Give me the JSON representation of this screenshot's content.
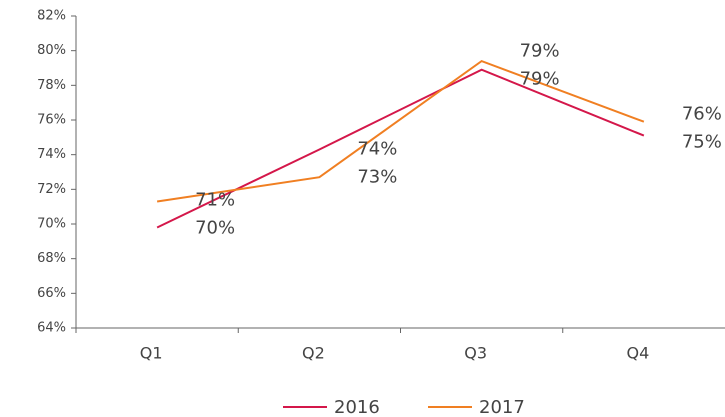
{
  "chart_data": {
    "type": "line",
    "categories": [
      "Q1",
      "Q2",
      "Q3",
      "Q4"
    ],
    "series": [
      {
        "name": "2016",
        "color": "#d4174a",
        "values": [
          69.8,
          74.3,
          78.9,
          75.1
        ],
        "value_labels": [
          "70%",
          "74%",
          "79%",
          "75%"
        ]
      },
      {
        "name": "2017",
        "color": "#f07f22",
        "values": [
          71.3,
          72.7,
          79.4,
          75.9
        ],
        "value_labels": [
          "71%",
          "73%",
          "79%",
          "76%"
        ]
      }
    ],
    "ylim": [
      64,
      82
    ],
    "yticks": [
      {
        "value": 64,
        "label": "64%"
      },
      {
        "value": 66,
        "label": "66%"
      },
      {
        "value": 68,
        "label": "68%"
      },
      {
        "value": 70,
        "label": "70%"
      },
      {
        "value": 72,
        "label": "72%"
      },
      {
        "value": 74,
        "label": "74%"
      },
      {
        "value": 76,
        "label": "76%"
      },
      {
        "value": 78,
        "label": "78%"
      },
      {
        "value": 80,
        "label": "80%"
      },
      {
        "value": 82,
        "label": "82%"
      }
    ],
    "grid": false,
    "legend": "bottom"
  }
}
